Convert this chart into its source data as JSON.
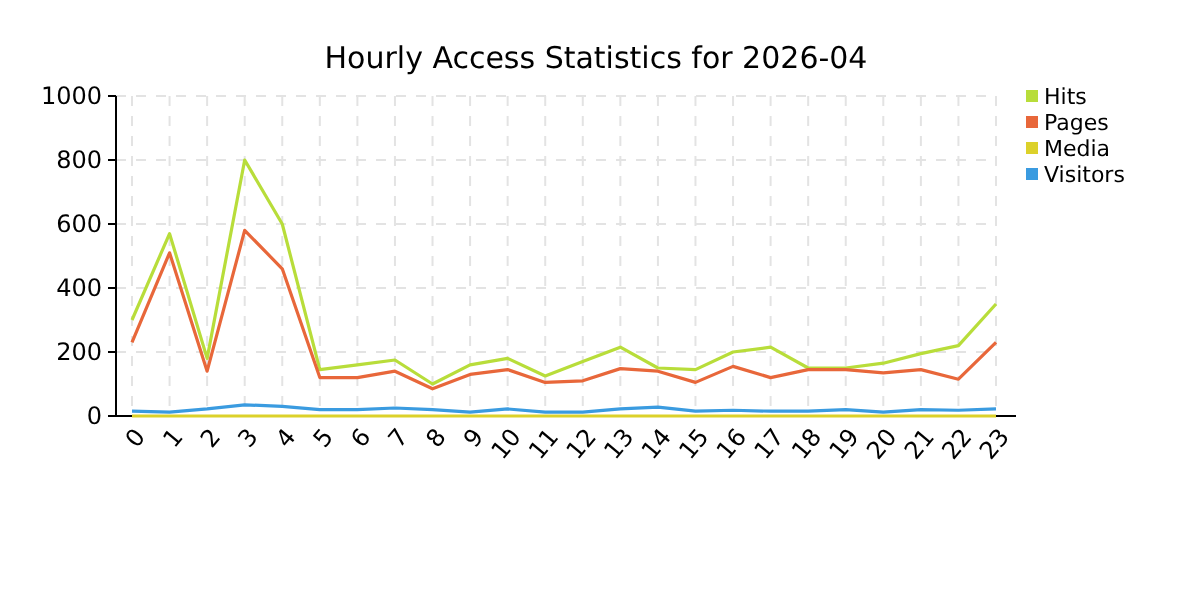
{
  "chart_data": {
    "type": "line",
    "title": "Hourly Access Statistics for 2026-04",
    "categories": [
      "0",
      "1",
      "2",
      "3",
      "4",
      "5",
      "6",
      "7",
      "8",
      "9",
      "10",
      "11",
      "12",
      "13",
      "14",
      "15",
      "16",
      "17",
      "18",
      "19",
      "20",
      "21",
      "22",
      "23"
    ],
    "series": [
      {
        "name": "Hits",
        "color": "#b8dd3a",
        "values": [
          300,
          570,
          180,
          800,
          600,
          145,
          160,
          175,
          100,
          160,
          180,
          125,
          170,
          215,
          150,
          145,
          200,
          215,
          150,
          150,
          165,
          195,
          220,
          350
        ]
      },
      {
        "name": "Pages",
        "color": "#e8673a",
        "values": [
          230,
          510,
          140,
          580,
          460,
          120,
          120,
          140,
          85,
          130,
          145,
          105,
          110,
          148,
          140,
          105,
          155,
          120,
          145,
          145,
          135,
          145,
          115,
          230
        ]
      },
      {
        "name": "Media",
        "color": "#dcd12a",
        "values": [
          0,
          0,
          0,
          0,
          0,
          0,
          0,
          0,
          0,
          0,
          0,
          0,
          0,
          0,
          0,
          0,
          0,
          0,
          0,
          0,
          0,
          0,
          0,
          0
        ]
      },
      {
        "name": "Visitors",
        "color": "#3a9be0",
        "values": [
          15,
          12,
          22,
          35,
          30,
          20,
          20,
          25,
          20,
          12,
          22,
          12,
          12,
          22,
          28,
          15,
          18,
          15,
          15,
          20,
          12,
          20,
          18,
          22
        ]
      }
    ],
    "ylim": [
      0,
      1000
    ],
    "yticks": [
      0,
      200,
      400,
      600,
      800,
      1000
    ],
    "grid": true,
    "legend": "top right",
    "marker": "none",
    "line_style": "solid"
  }
}
